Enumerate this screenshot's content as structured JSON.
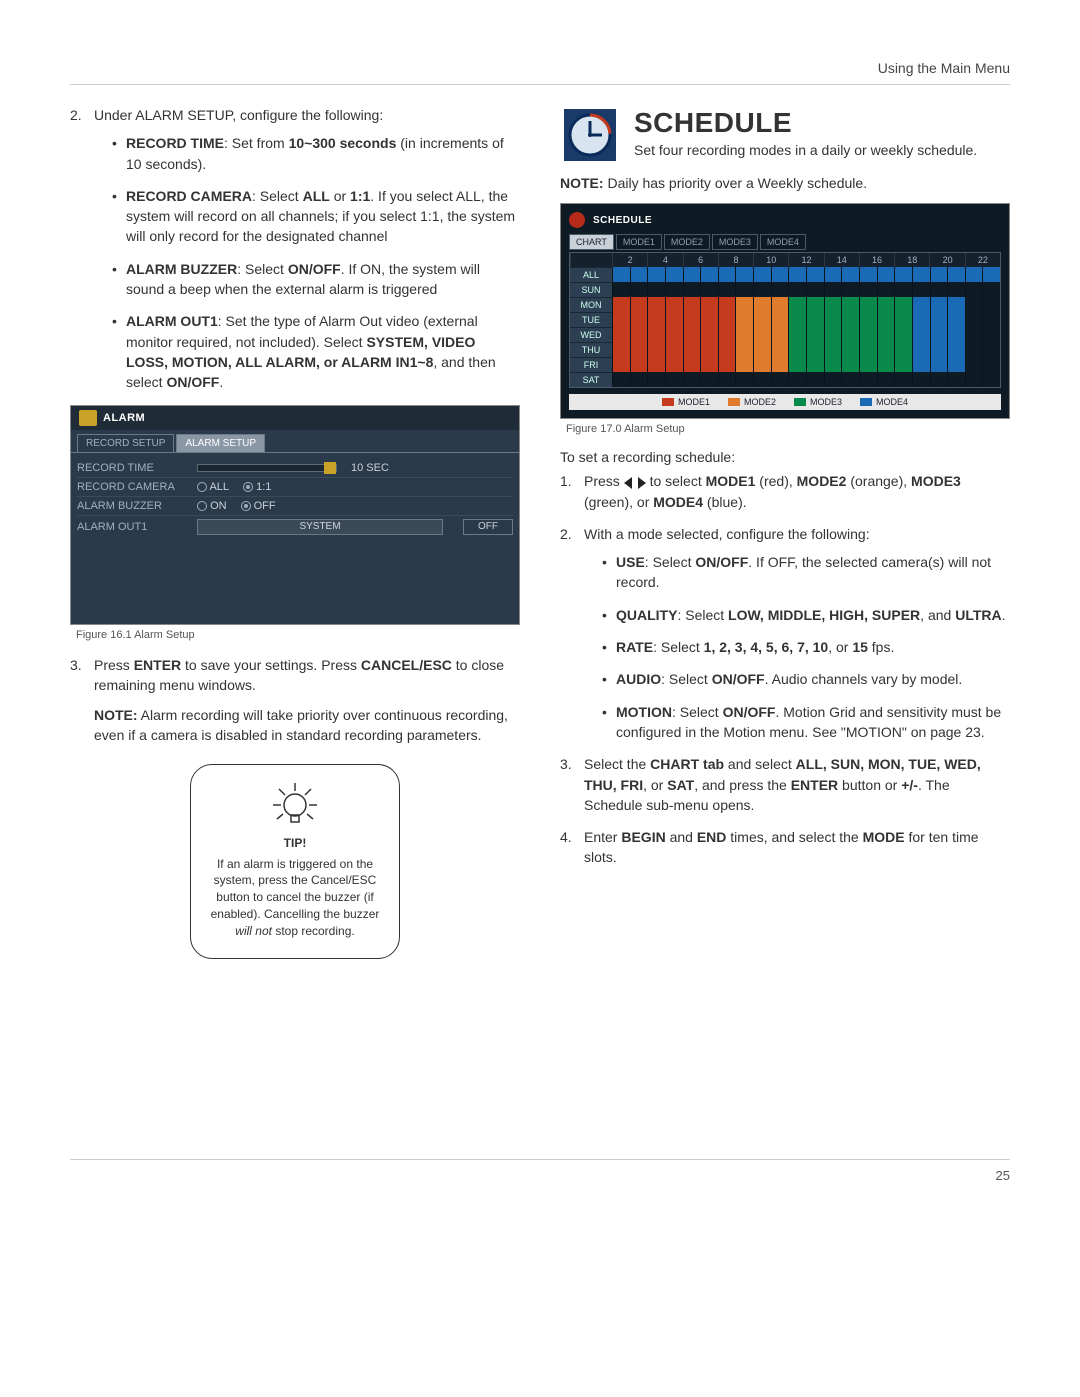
{
  "header": {
    "section": "Using the Main Menu"
  },
  "left": {
    "step2_intro": "Under ALARM SETUP, configure the following:",
    "bullets": {
      "record_time": {
        "label": "RECORD TIME",
        "text": ": Set from ",
        "range": "10~300 seconds",
        "tail": " (in increments of 10 seconds)."
      },
      "record_camera": {
        "label": "RECORD CAMERA",
        "text": ": Select ",
        "opt1": "ALL",
        "mid": " or ",
        "opt2": "1:1",
        "tail": ". If you select ALL, the system will record on all channels; if you select 1:1, the system will only record for the designated channel"
      },
      "alarm_buzzer": {
        "label": "ALARM BUZZER",
        "text": ": Select ",
        "onoff": "ON/OFF",
        "tail": ". If ON, the system will sound a beep when the external alarm is triggered"
      },
      "alarm_out1": {
        "label": "ALARM OUT1",
        "text": ": Set the type of Alarm Out video (external monitor required, not included). Select ",
        "opts": "SYSTEM, VIDEO LOSS, MOTION, ALL ALARM, or ALARM IN1~8",
        "tail2": ", and then select ",
        "onoff": "ON/OFF",
        "period": "."
      }
    },
    "alarm_panel": {
      "title": "ALARM",
      "tab1": "RECORD SETUP",
      "tab2": "ALARM SETUP",
      "rows": {
        "record_time": {
          "label": "RECORD TIME",
          "value": "10 SEC"
        },
        "record_camera": {
          "label": "RECORD CAMERA",
          "opt_all": "ALL",
          "opt_11": "1:1"
        },
        "alarm_buzzer": {
          "label": "ALARM BUZZER",
          "opt_on": "ON",
          "opt_off": "OFF"
        },
        "alarm_out1": {
          "label": "ALARM OUT1",
          "dropdown": "SYSTEM",
          "state": "OFF"
        }
      }
    },
    "fig16_caption": "Figure 16.1 Alarm Setup",
    "step3": {
      "pre": "Press ",
      "enter": "ENTER",
      "mid": " to save your settings. Press ",
      "cancel": "CANCEL/ESC",
      "tail": " to close remaining menu windows."
    },
    "note": {
      "label": "NOTE:",
      "text": " Alarm recording will take priority over continuous recording, even if a camera is disabled in standard recording parameters."
    },
    "tip": {
      "title": "TIP!",
      "body_pre": "If an alarm is triggered on the system, press the Cancel/ESC button to cancel the buzzer (if enabled). Cancelling the buzzer ",
      "em": "will not",
      "body_post": " stop recording."
    }
  },
  "right": {
    "title": "SCHEDULE",
    "subtitle": "Set four recording modes in a daily or weekly schedule.",
    "note": {
      "label": "NOTE:",
      "text": " Daily has priority over a Weekly schedule."
    },
    "schedule_panel": {
      "title": "SCHEDULE",
      "tabs": [
        "CHART",
        "MODE1",
        "MODE2",
        "MODE3",
        "MODE4"
      ],
      "hours": [
        "",
        "2",
        "4",
        "6",
        "8",
        "10",
        "12",
        "14",
        "16",
        "18",
        "20",
        "22"
      ],
      "days": [
        "ALL",
        "SUN",
        "MON",
        "TUE",
        "WED",
        "THU",
        "FRI",
        "SAT"
      ],
      "row_colors": {
        "ALL": [
          "#1a6ab5",
          "#1a6ab5",
          "#1a6ab5",
          "#1a6ab5",
          "#1a6ab5",
          "#1a6ab5",
          "#1a6ab5",
          "#1a6ab5",
          "#1a6ab5",
          "#1a6ab5",
          "#1a6ab5",
          "#1a6ab5",
          "#1a6ab5",
          "#1a6ab5",
          "#1a6ab5",
          "#1a6ab5",
          "#1a6ab5",
          "#1a6ab5",
          "#1a6ab5",
          "#1a6ab5",
          "#1a6ab5",
          "#1a6ab5"
        ],
        "SUN": [
          "#0e1a24",
          "#0e1a24",
          "#0e1a24",
          "#0e1a24",
          "#0e1a24",
          "#0e1a24",
          "#0e1a24",
          "#0e1a24",
          "#0e1a24",
          "#0e1a24",
          "#0e1a24",
          "#0e1a24",
          "#0e1a24",
          "#0e1a24",
          "#0e1a24",
          "#0e1a24",
          "#0e1a24",
          "#0e1a24",
          "#0e1a24",
          "#0e1a24",
          "#0e1a24",
          "#0e1a24"
        ],
        "MON": [
          "#c63a1e",
          "#c63a1e",
          "#c63a1e",
          "#c63a1e",
          "#c63a1e",
          "#c63a1e",
          "#c63a1e",
          "#e07b2e",
          "#e07b2e",
          "#e07b2e",
          "#0a8a4a",
          "#0a8a4a",
          "#0a8a4a",
          "#0a8a4a",
          "#0a8a4a",
          "#0a8a4a",
          "#0a8a4a",
          "#1a6ab5",
          "#1a6ab5",
          "#1a6ab5",
          "#0e1a24",
          "#0e1a24"
        ],
        "TUE": [
          "#c63a1e",
          "#c63a1e",
          "#c63a1e",
          "#c63a1e",
          "#c63a1e",
          "#c63a1e",
          "#c63a1e",
          "#e07b2e",
          "#e07b2e",
          "#e07b2e",
          "#0a8a4a",
          "#0a8a4a",
          "#0a8a4a",
          "#0a8a4a",
          "#0a8a4a",
          "#0a8a4a",
          "#0a8a4a",
          "#1a6ab5",
          "#1a6ab5",
          "#1a6ab5",
          "#0e1a24",
          "#0e1a24"
        ],
        "WED": [
          "#c63a1e",
          "#c63a1e",
          "#c63a1e",
          "#c63a1e",
          "#c63a1e",
          "#c63a1e",
          "#c63a1e",
          "#e07b2e",
          "#e07b2e",
          "#e07b2e",
          "#0a8a4a",
          "#0a8a4a",
          "#0a8a4a",
          "#0a8a4a",
          "#0a8a4a",
          "#0a8a4a",
          "#0a8a4a",
          "#1a6ab5",
          "#1a6ab5",
          "#1a6ab5",
          "#0e1a24",
          "#0e1a24"
        ],
        "THU": [
          "#c63a1e",
          "#c63a1e",
          "#c63a1e",
          "#c63a1e",
          "#c63a1e",
          "#c63a1e",
          "#c63a1e",
          "#e07b2e",
          "#e07b2e",
          "#e07b2e",
          "#0a8a4a",
          "#0a8a4a",
          "#0a8a4a",
          "#0a8a4a",
          "#0a8a4a",
          "#0a8a4a",
          "#0a8a4a",
          "#1a6ab5",
          "#1a6ab5",
          "#1a6ab5",
          "#0e1a24",
          "#0e1a24"
        ],
        "FRI": [
          "#c63a1e",
          "#c63a1e",
          "#c63a1e",
          "#c63a1e",
          "#c63a1e",
          "#c63a1e",
          "#c63a1e",
          "#e07b2e",
          "#e07b2e",
          "#e07b2e",
          "#0a8a4a",
          "#0a8a4a",
          "#0a8a4a",
          "#0a8a4a",
          "#0a8a4a",
          "#0a8a4a",
          "#0a8a4a",
          "#1a6ab5",
          "#1a6ab5",
          "#1a6ab5",
          "#0e1a24",
          "#0e1a24"
        ],
        "SAT": [
          "#0e1a24",
          "#0e1a24",
          "#0e1a24",
          "#0e1a24",
          "#0e1a24",
          "#0e1a24",
          "#0e1a24",
          "#0e1a24",
          "#0e1a24",
          "#0e1a24",
          "#0e1a24",
          "#0e1a24",
          "#0e1a24",
          "#0e1a24",
          "#0e1a24",
          "#0e1a24",
          "#0e1a24",
          "#0e1a24",
          "#0e1a24",
          "#0e1a24",
          "#0e1a24",
          "#0e1a24"
        ]
      },
      "legend": [
        {
          "label": "MODE1",
          "color": "#c63a1e"
        },
        {
          "label": "MODE2",
          "color": "#e07b2e"
        },
        {
          "label": "MODE3",
          "color": "#0a8a4a"
        },
        {
          "label": "MODE4",
          "color": "#1a6ab5"
        }
      ]
    },
    "fig17_caption": "Figure 17.0 Alarm Setup",
    "intro": "To set a recording schedule:",
    "step1": {
      "pre": "Press ",
      "mid": " to select ",
      "m1": "MODE1",
      "m1c": " (red), ",
      "m2": "MODE2",
      "m2c": " (orange), ",
      "m3": "MODE3",
      "m3c": " (green), or ",
      "m4": "MODE4",
      "m4c": " (blue)."
    },
    "step2_intro": "With a mode selected, configure the following:",
    "bullets": {
      "use": {
        "label": "USE",
        "text": ": Select ",
        "onoff": "ON/OFF",
        "tail": ". If OFF, the selected camera(s) will not record."
      },
      "quality": {
        "label": "QUALITY",
        "text": ": Select ",
        "opts": "LOW, MIDDLE, HIGH, SUPER",
        "and": ", and ",
        "ultra": "ULTRA",
        "period": "."
      },
      "rate": {
        "label": "RATE",
        "text": ": Select ",
        "opts": "1, 2, 3, 4, 5, 6, 7, 10",
        "or": ", or ",
        "last": "15",
        "tail": " fps."
      },
      "audio": {
        "label": "AUDIO",
        "text": ": Select ",
        "onoff": "ON/OFF",
        "tail": ". Audio channels vary by model."
      },
      "motion": {
        "label": "MOTION",
        "text": ": Select ",
        "onoff": "ON/OFF",
        "tail": ". Motion Grid and sensitivity must be configured in the Motion menu. See \"MOTION\" on page 23."
      }
    },
    "step3": {
      "pre": "Select the ",
      "chart": "CHART tab",
      "mid1": " and select ",
      "days": "ALL, SUN, MON, TUE, WED, THU, FRI",
      "or": ", or ",
      "sat": "SAT",
      "mid2": ", and press the ",
      "enter": "ENTER",
      "mid3": " button or ",
      "pm": "+/-",
      "tail": ". The Schedule sub-menu opens."
    },
    "step4": {
      "pre": "Enter ",
      "begin": "BEGIN",
      "and": " and ",
      "end": "END",
      "mid": " times, and select the ",
      "mode": "MODE",
      "tail": " for ten time slots."
    }
  },
  "footer": {
    "page": "25"
  },
  "colors": {
    "mode1": "#c63a1e",
    "mode2": "#e07b2e",
    "mode3": "#0a8a4a",
    "mode4": "#1a6ab5",
    "panel_bg": "#2a3a4a",
    "schedule_bg": "#0e1a24"
  }
}
